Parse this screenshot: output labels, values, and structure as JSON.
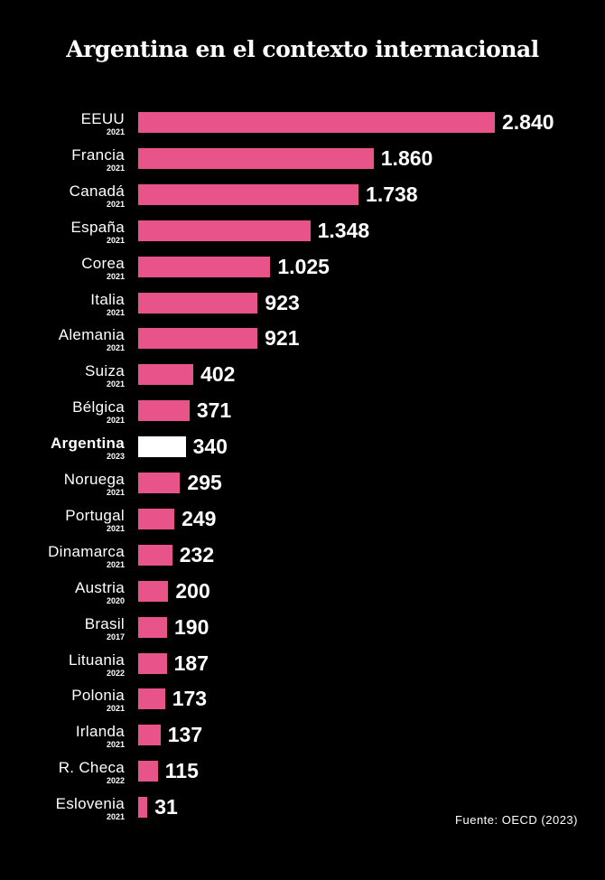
{
  "chart_data": {
    "type": "bar",
    "orientation": "horizontal",
    "title": "Argentina en el contexto internacional",
    "source": "Fuente: OECD (2023)",
    "categories": [
      "EEUU",
      "Francia",
      "Canadá",
      "España",
      "Corea",
      "Italia",
      "Alemania",
      "Suiza",
      "Bélgica",
      "Argentina",
      "Noruega",
      "Portugal",
      "Dinamarca",
      "Austria",
      "Brasil",
      "Lituania",
      "Polonia",
      "Irlanda",
      "R. Checa",
      "Eslovenia"
    ],
    "years": [
      "2021",
      "2021",
      "2021",
      "2021",
      "2021",
      "2021",
      "2021",
      "2021",
      "2021",
      "2023",
      "2021",
      "2021",
      "2021",
      "2020",
      "2017",
      "2022",
      "2021",
      "2021",
      "2022",
      "2021"
    ],
    "values": [
      2840,
      1860,
      1738,
      1348,
      1025,
      923,
      921,
      402,
      371,
      340,
      295,
      249,
      232,
      200,
      190,
      187,
      173,
      137,
      115,
      31
    ],
    "labels": [
      "2.840",
      "1.860",
      "1.738",
      "1.348",
      "1.025",
      "923",
      "921",
      "402",
      "371",
      "340",
      "295",
      "249",
      "232",
      "200",
      "190",
      "187",
      "173",
      "137",
      "115",
      "31"
    ],
    "highlight": "Argentina",
    "colors": {
      "bar": "#e8548a",
      "highlight": "#ffffff",
      "background": "#000000"
    }
  }
}
